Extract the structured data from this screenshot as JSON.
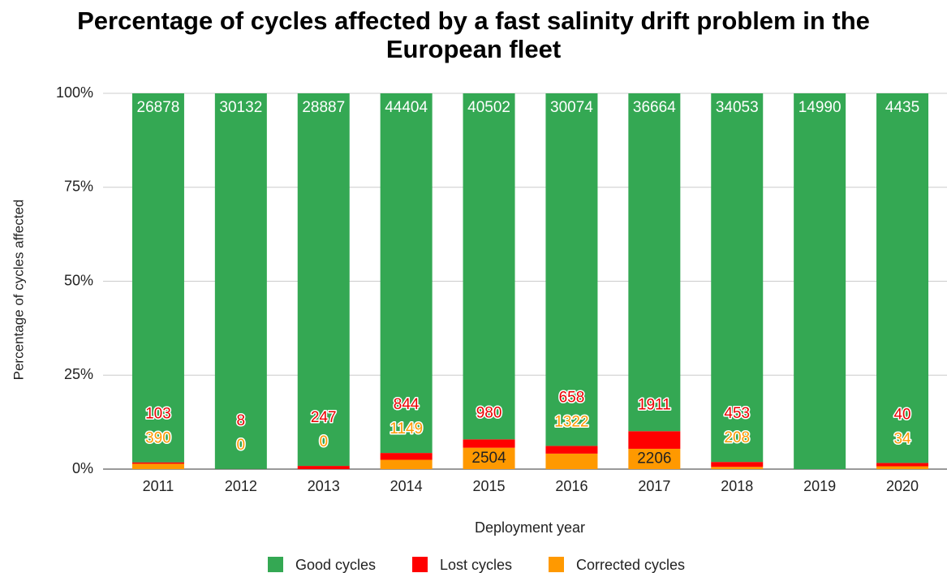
{
  "chart_data": {
    "type": "bar",
    "stacking": "percent",
    "title": "Percentage of cycles affected by a fast salinity drift problem in the European fleet",
    "xlabel": "Deployment year",
    "ylabel": "Percentage of cycles affected",
    "categories": [
      "2011",
      "2012",
      "2013",
      "2014",
      "2015",
      "2016",
      "2017",
      "2018",
      "2019",
      "2020"
    ],
    "series": [
      {
        "name": "Corrected cycles",
        "color": "#ff9900",
        "values": [
          390,
          0,
          0,
          1149,
          2504,
          1322,
          2206,
          208,
          null,
          34
        ]
      },
      {
        "name": "Lost cycles",
        "color": "#ff0000",
        "values": [
          103,
          8,
          247,
          844,
          980,
          658,
          1911,
          453,
          null,
          40
        ]
      },
      {
        "name": "Good cycles",
        "color": "#34a853",
        "values": [
          26878,
          30132,
          28887,
          44404,
          40502,
          30074,
          36664,
          34053,
          14990,
          4435
        ]
      }
    ],
    "legend_order": [
      "Good cycles",
      "Lost cycles",
      "Corrected cycles"
    ],
    "ylim": [
      0,
      100
    ],
    "yticks": [
      {
        "value": 0,
        "label": "0%"
      },
      {
        "value": 25,
        "label": "25%"
      },
      {
        "value": 50,
        "label": "50%"
      },
      {
        "value": 75,
        "label": "75%"
      },
      {
        "value": 100,
        "label": "100%"
      }
    ],
    "grid": true,
    "legend": "bottom"
  }
}
